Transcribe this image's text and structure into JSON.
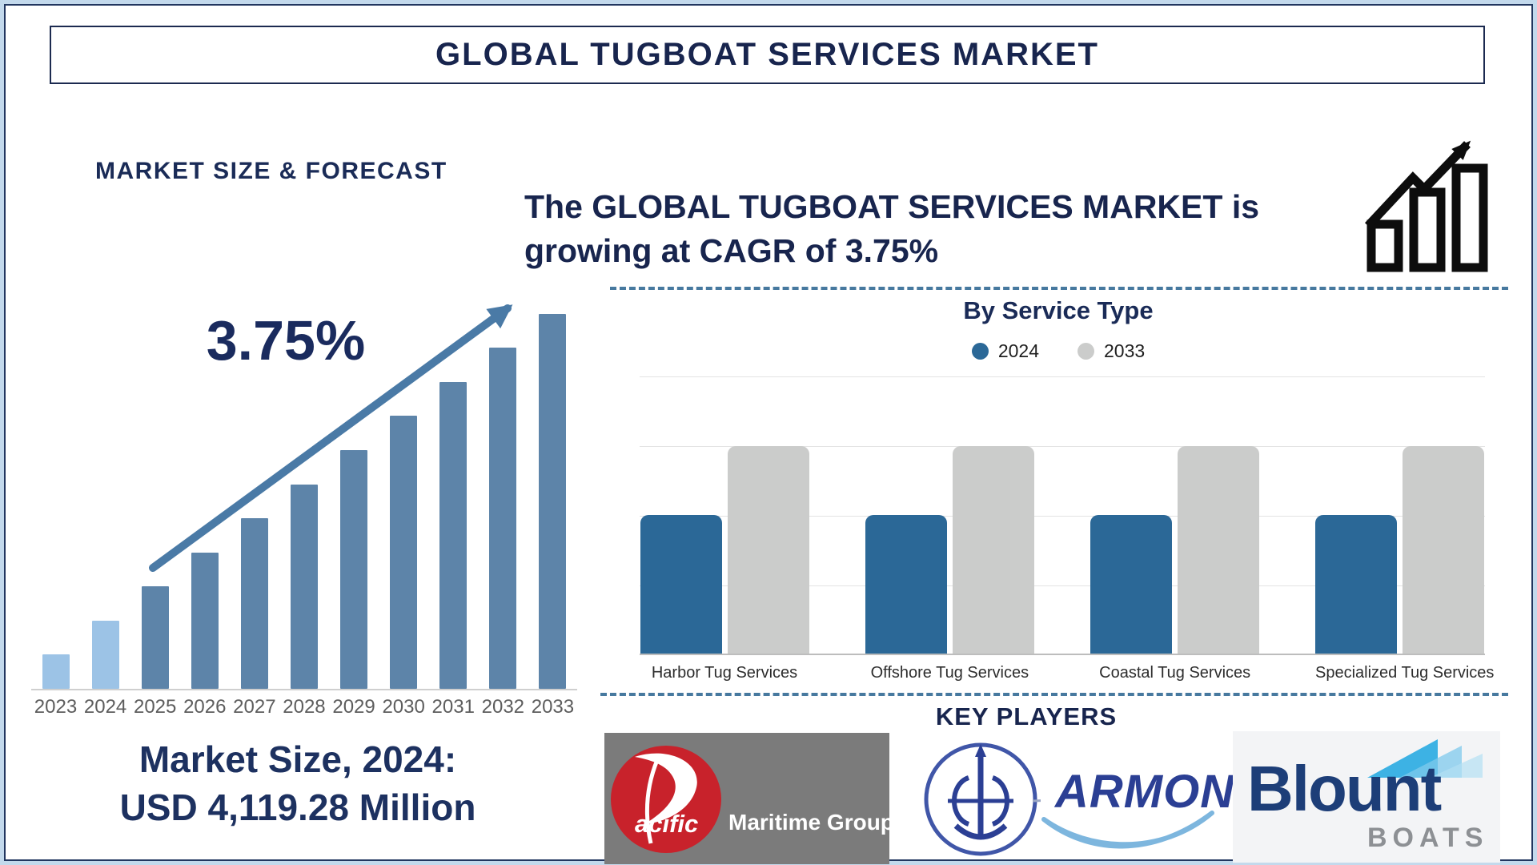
{
  "page": {
    "title": "GLOBAL TUGBOAT SERVICES MARKET"
  },
  "left_panel": {
    "heading": "MARKET SIZE & FORECAST",
    "cagr_label": "3.75%",
    "market_size_line1": "Market Size, 2024:",
    "market_size_line2": "USD 4,119.28 Million"
  },
  "right_panel": {
    "headline_line1": "The GLOBAL TUGBOAT SERVICES MARKET is",
    "headline_line2": "growing at CAGR of 3.75%",
    "service_chart_title": "By Service Type",
    "legend": [
      {
        "label": "2024",
        "color": "#2b6897"
      },
      {
        "label": "2033",
        "color": "#cbcccb"
      }
    ],
    "key_players_heading": "KEY PLAYERS",
    "key_players": [
      {
        "name": "Pacific Maritime Group",
        "text_primary": "acific",
        "text_secondary": "Maritime Group"
      },
      {
        "name": "Armon",
        "text_primary": "ARMON"
      },
      {
        "name": "Blount Boats",
        "text_primary": "Blount",
        "text_secondary": "BOATS"
      }
    ]
  },
  "chart_data": [
    {
      "type": "bar",
      "title": "MARKET SIZE & FORECAST",
      "x": [
        "2023",
        "2024",
        "2025",
        "2026",
        "2027",
        "2028",
        "2029",
        "2030",
        "2031",
        "2032",
        "2033"
      ],
      "values_relative": [
        9,
        18,
        27,
        36,
        45,
        54,
        63,
        72,
        81,
        90,
        99
      ],
      "known_values": {
        "2024": "USD 4,119.28 Million"
      },
      "cagr": "3.75%",
      "annotation": "3.75%",
      "colors": {
        "historical": "#9cc3e6",
        "forecast": "#5d84a9",
        "arrow": "#4a7aa6"
      },
      "grid": false,
      "xlabel": "",
      "ylabel": ""
    },
    {
      "type": "bar",
      "title": "By Service Type",
      "categories": [
        "Harbor Tug Services",
        "Offshore Tug Services",
        "Coastal Tug Services",
        "Specialized Tug Services"
      ],
      "series": [
        {
          "name": "2024",
          "color": "#2b6897",
          "values_relative": [
            50,
            50,
            50,
            50
          ]
        },
        {
          "name": "2033",
          "color": "#cbcccb",
          "values_relative": [
            75,
            75,
            75,
            75
          ]
        }
      ],
      "grid": true,
      "legend_position": "top",
      "xlabel": "",
      "ylabel": ""
    }
  ],
  "colors": {
    "navy_text": "#18254e",
    "frame_border": "#22365f",
    "frame_background": "#c3d9ec",
    "divider_dash": "#47799f",
    "pmg_panel": "#7b7b7b",
    "pmg_red": "#c8222b",
    "armon_blue": "#2b3f94",
    "armon_wave": "#9ecbe9",
    "blount_navy": "#1d3e78",
    "blount_gray": "#8d9094"
  }
}
